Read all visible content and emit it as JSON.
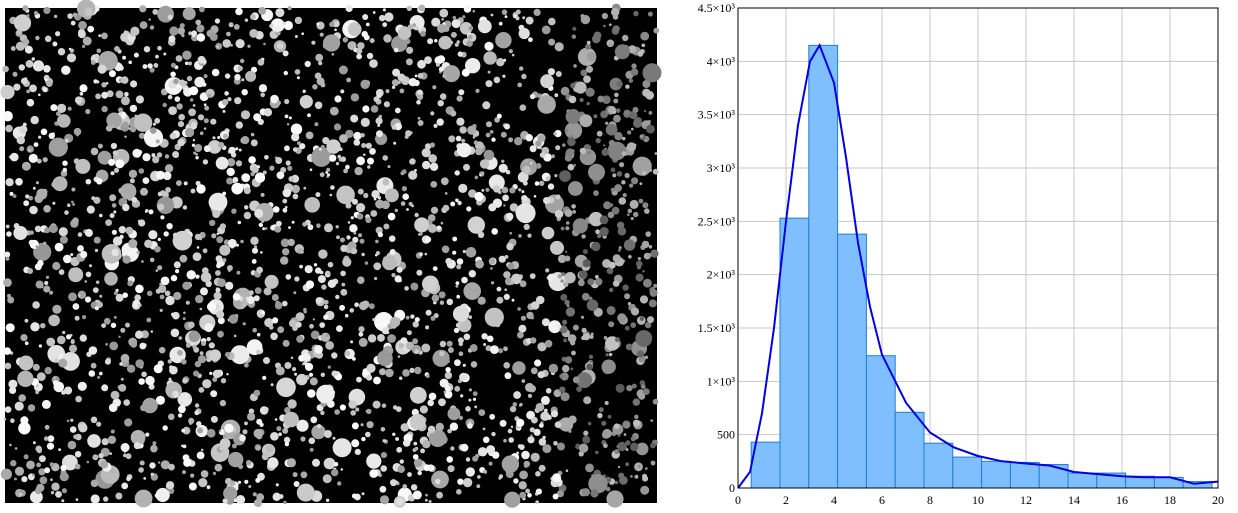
{
  "chart_data": {
    "type": "histogram",
    "bins": [
      0.55,
      1.75,
      2.95,
      4.15,
      5.35,
      6.55,
      7.75,
      8.95,
      10.15,
      11.35,
      12.55,
      13.75,
      14.95,
      16.15,
      17.35,
      18.55,
      19.75
    ],
    "counts": [
      430,
      2530,
      4150,
      2380,
      1240,
      710,
      420,
      290,
      250,
      240,
      220,
      140,
      140,
      110,
      100,
      60
    ],
    "color": "#80bfff",
    "edge_color": "#1e7fd6",
    "curve": {
      "color": "#0000e0",
      "x": [
        0,
        0.5,
        1,
        1.5,
        2,
        2.5,
        3,
        3.4,
        4,
        4.5,
        5,
        5.5,
        6,
        7,
        8,
        9,
        10,
        11,
        12,
        13,
        14,
        15,
        16,
        17,
        18,
        19,
        20
      ],
      "y": [
        0,
        150,
        700,
        1500,
        2500,
        3400,
        4000,
        4150,
        3800,
        3100,
        2300,
        1700,
        1250,
        800,
        520,
        380,
        300,
        250,
        230,
        210,
        150,
        130,
        110,
        100,
        100,
        40,
        60
      ]
    },
    "xlim": [
      0,
      20
    ],
    "ylim": [
      0,
      4500
    ],
    "xticks": [
      0,
      2,
      4,
      6,
      8,
      10,
      12,
      14,
      16,
      18,
      20
    ],
    "yticks": [
      0,
      500,
      {
        "value": 1000,
        "label": "1×10³"
      },
      {
        "value": 1500,
        "label": "1.5×10³"
      },
      {
        "value": 2000,
        "label": "2×10³"
      },
      {
        "value": 2500,
        "label": "2.5×10³"
      },
      {
        "value": 3000,
        "label": "3×10³"
      },
      {
        "value": 3500,
        "label": "3.5×10³"
      },
      {
        "value": 4000,
        "label": "4×10³"
      },
      {
        "value": 4500,
        "label": "4.5×10³"
      }
    ],
    "grid": true
  }
}
